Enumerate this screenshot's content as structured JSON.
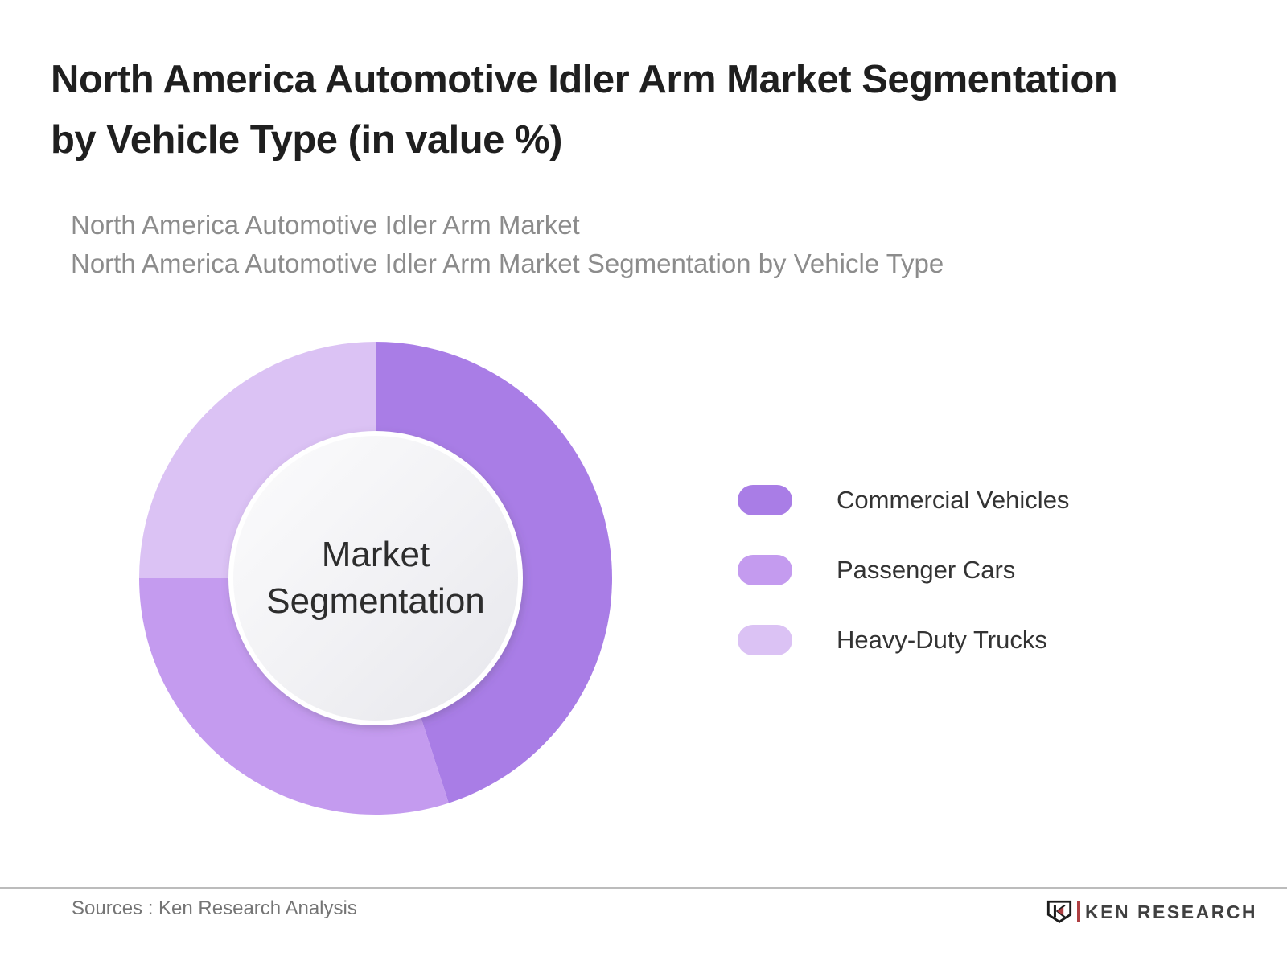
{
  "page": {
    "title_lines": [
      "North America Automotive Idler Arm Market Segmentation",
      "by Vehicle Type (in value %)"
    ],
    "subtitle_lines": [
      "North America Automotive Idler Arm Market",
      "North America Automotive Idler Arm Market Segmentation by Vehicle Type"
    ]
  },
  "chart_data": {
    "type": "pie",
    "subtype": "donut",
    "title": "North America Automotive Idler Arm Market Segmentation by Vehicle Type (in value %)",
    "center_label": "Market Segmentation",
    "start_angle_deg": 0,
    "direction": "clockwise",
    "legend_position": "right",
    "segments": [
      {
        "label": "Commercial Vehicles",
        "value_pct": 45,
        "color": "#a97de6"
      },
      {
        "label": "Passenger Cars",
        "value_pct": 30,
        "color": "#c49bef"
      },
      {
        "label": "Heavy-Duty Trucks",
        "value_pct": 25,
        "color": "#dbc2f4"
      }
    ]
  },
  "footer": {
    "source_text": "Sources : Ken Research Analysis",
    "brand_wordmark": "KEN RESEARCH",
    "brand_red": "#ae3f42"
  }
}
